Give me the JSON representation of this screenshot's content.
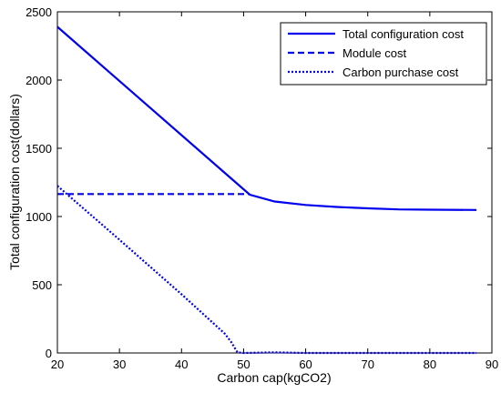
{
  "chart_data": {
    "type": "line",
    "title": "",
    "xlabel": "Carbon cap(kgCO2)",
    "ylabel": "Total configuration cost(dollars)",
    "xlim": [
      20,
      90
    ],
    "ylim": [
      0,
      2500
    ],
    "xticks": [
      20,
      30,
      40,
      50,
      60,
      70,
      80,
      90
    ],
    "yticks": [
      0,
      500,
      1000,
      1500,
      2000,
      2500
    ],
    "grid": false,
    "legend_position": "top-right",
    "line_color": "#0000ee",
    "series": [
      {
        "name": "Total configuration cost",
        "line_style": "solid",
        "x": [
          20,
          51,
          55,
          60,
          65,
          70,
          75,
          80,
          87.5
        ],
        "y": [
          2390,
          1160,
          1110,
          1085,
          1070,
          1060,
          1052,
          1050,
          1048
        ]
      },
      {
        "name": "Module cost",
        "line_style": "dashed",
        "x": [
          20,
          51
        ],
        "y": [
          1165,
          1165
        ]
      },
      {
        "name": "Carbon purchase cost",
        "line_style": "dotted",
        "x": [
          20,
          30,
          40,
          47,
          48,
          49,
          50,
          55,
          60,
          70,
          80,
          87.5
        ],
        "y": [
          1225,
          830,
          430,
          140,
          80,
          5,
          0,
          5,
          0,
          0,
          0,
          0
        ]
      }
    ]
  }
}
